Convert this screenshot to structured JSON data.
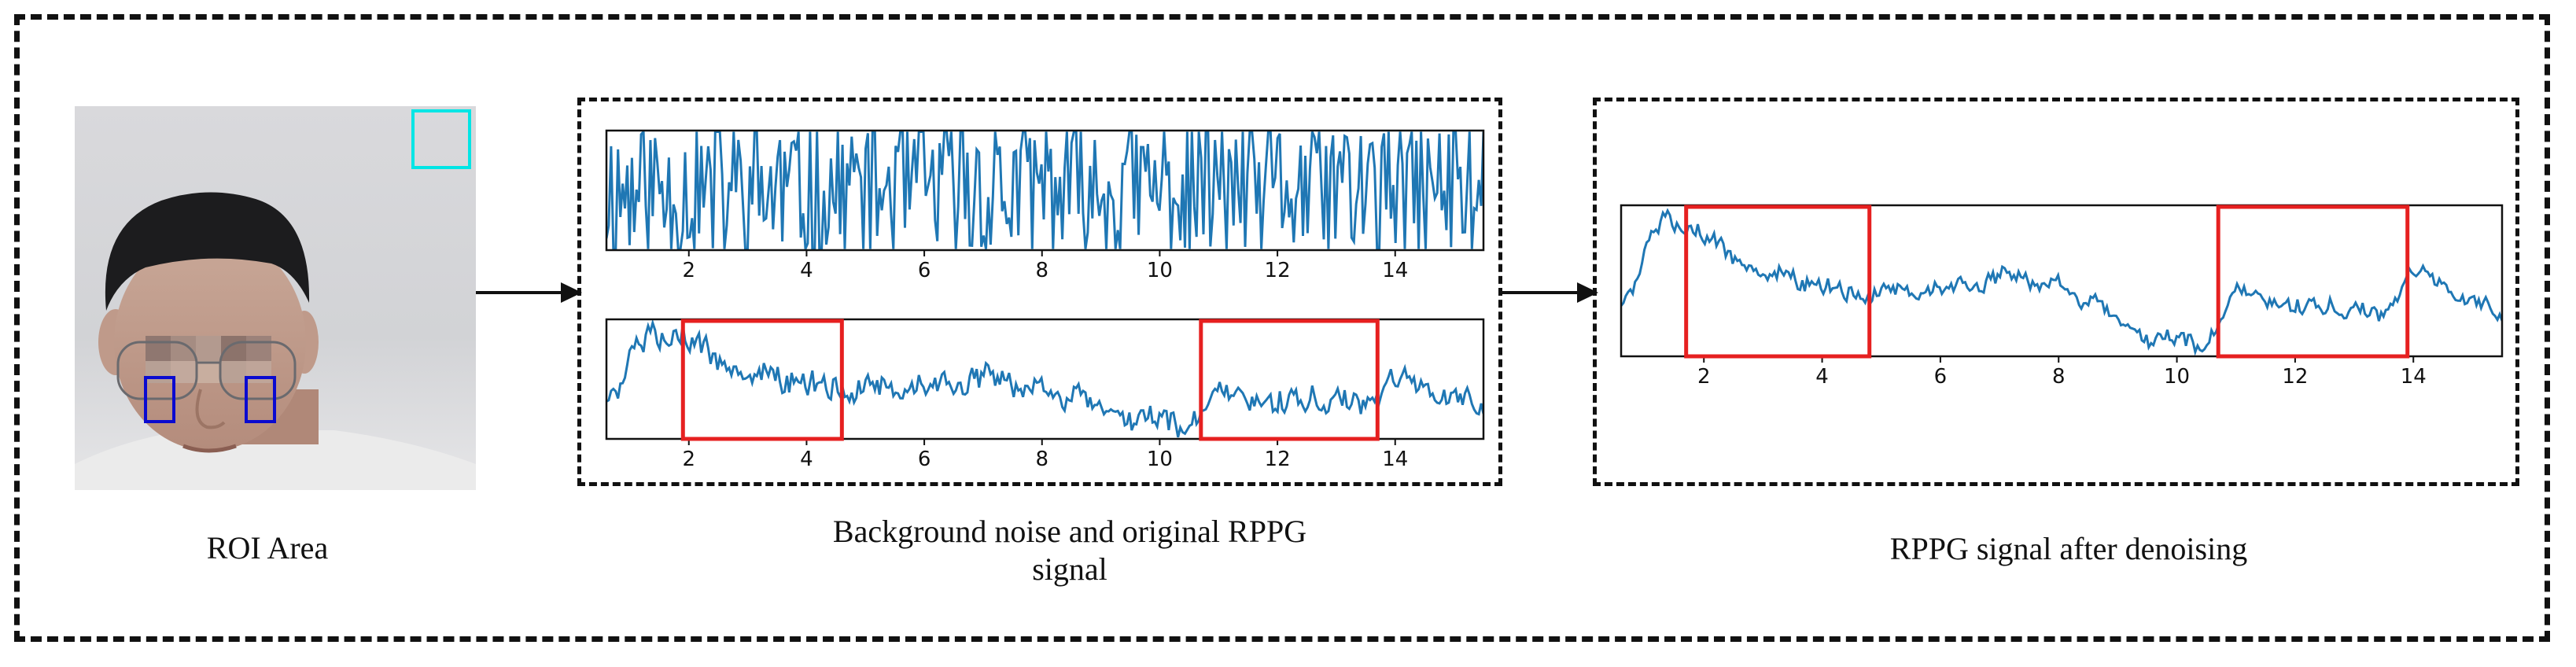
{
  "captions": {
    "roi": "ROI Area",
    "middle_line1": "Background noise and original RPPG",
    "middle_line2": "signal",
    "right": "RPPG signal after denoising"
  },
  "colors": {
    "signal": "#1f77b4",
    "highlight": "#e62020",
    "roi_cheek": "#0a0ad0",
    "roi_background": "#00e5e5"
  },
  "icons": {
    "arrow_1": "right-arrow",
    "arrow_2": "right-arrow"
  },
  "chart_data": [
    {
      "type": "line",
      "id": "background-noise",
      "xlim": [
        0.6,
        15.5
      ],
      "ylim": [
        -1,
        1
      ],
      "xticks": [
        2,
        4,
        6,
        8,
        10,
        12,
        14
      ],
      "seed": 11,
      "noise": 0.62,
      "smooth": 0.0,
      "trend": [],
      "highlights": []
    },
    {
      "type": "line",
      "id": "original-rppg",
      "xlim": [
        0.6,
        15.5
      ],
      "ylim": [
        -1,
        1
      ],
      "xticks": [
        2,
        4,
        6,
        8,
        10,
        12,
        14
      ],
      "seed": 5,
      "noise": 0.18,
      "smooth": 0.5,
      "trend": [
        [
          0.6,
          -0.3
        ],
        [
          1.3,
          0.7
        ],
        [
          1.8,
          0.9
        ],
        [
          2.5,
          0.3
        ],
        [
          4.5,
          -0.2
        ],
        [
          6.0,
          -0.05
        ],
        [
          8.0,
          -0.1
        ],
        [
          9.5,
          -0.7
        ],
        [
          10.5,
          -0.85
        ],
        [
          11.0,
          -0.3
        ],
        [
          13.5,
          -0.4
        ],
        [
          14.0,
          0.1
        ],
        [
          15.5,
          -0.45
        ]
      ],
      "highlights": [
        [
          1.9,
          4.6
        ],
        [
          10.7,
          13.7
        ]
      ]
    },
    {
      "type": "line",
      "id": "denoised-rppg",
      "xlim": [
        0.6,
        15.5
      ],
      "ylim": [
        -1,
        1
      ],
      "xticks": [
        2,
        4,
        6,
        8,
        10,
        12,
        14
      ],
      "seed": 5,
      "noise": 0.13,
      "smooth": 0.65,
      "trend": [
        [
          0.6,
          -0.3
        ],
        [
          1.3,
          0.8
        ],
        [
          1.8,
          0.8
        ],
        [
          2.5,
          0.3
        ],
        [
          4.5,
          -0.2
        ],
        [
          6.0,
          -0.05
        ],
        [
          8.0,
          0.0
        ],
        [
          9.5,
          -0.8
        ],
        [
          10.5,
          -0.9
        ],
        [
          11.0,
          -0.2
        ],
        [
          13.5,
          -0.45
        ],
        [
          14.0,
          0.2
        ],
        [
          15.5,
          -0.45
        ]
      ],
      "highlights": [
        [
          1.7,
          4.8
        ],
        [
          10.7,
          13.9
        ]
      ]
    }
  ]
}
